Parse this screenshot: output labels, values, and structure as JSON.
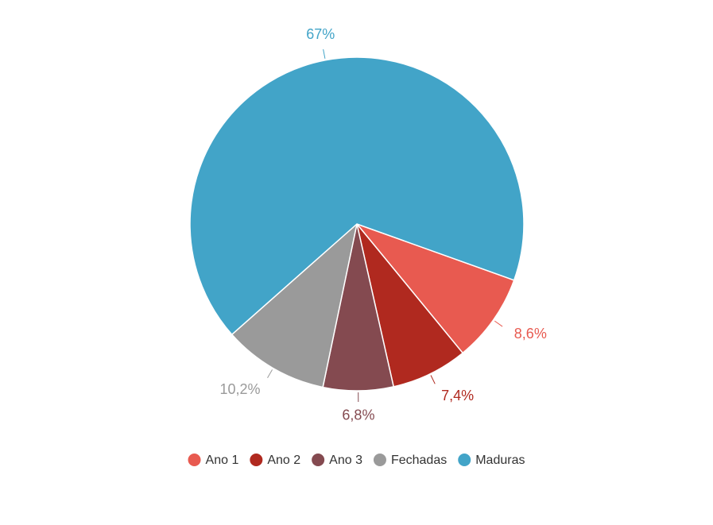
{
  "chart_data": {
    "type": "pie",
    "categories": [
      "Ano 1",
      "Ano 2",
      "Ano 3",
      "Fechadas",
      "Maduras"
    ],
    "values": [
      8.6,
      7.4,
      6.8,
      10.2,
      67
    ],
    "value_labels": [
      "8,6%",
      "7,4%",
      "6,8%",
      "10,2%",
      "67%"
    ],
    "colors": [
      "#e85a50",
      "#b0291f",
      "#844a50",
      "#9a9a9a",
      "#42a4c8"
    ],
    "legend": "bottom"
  }
}
